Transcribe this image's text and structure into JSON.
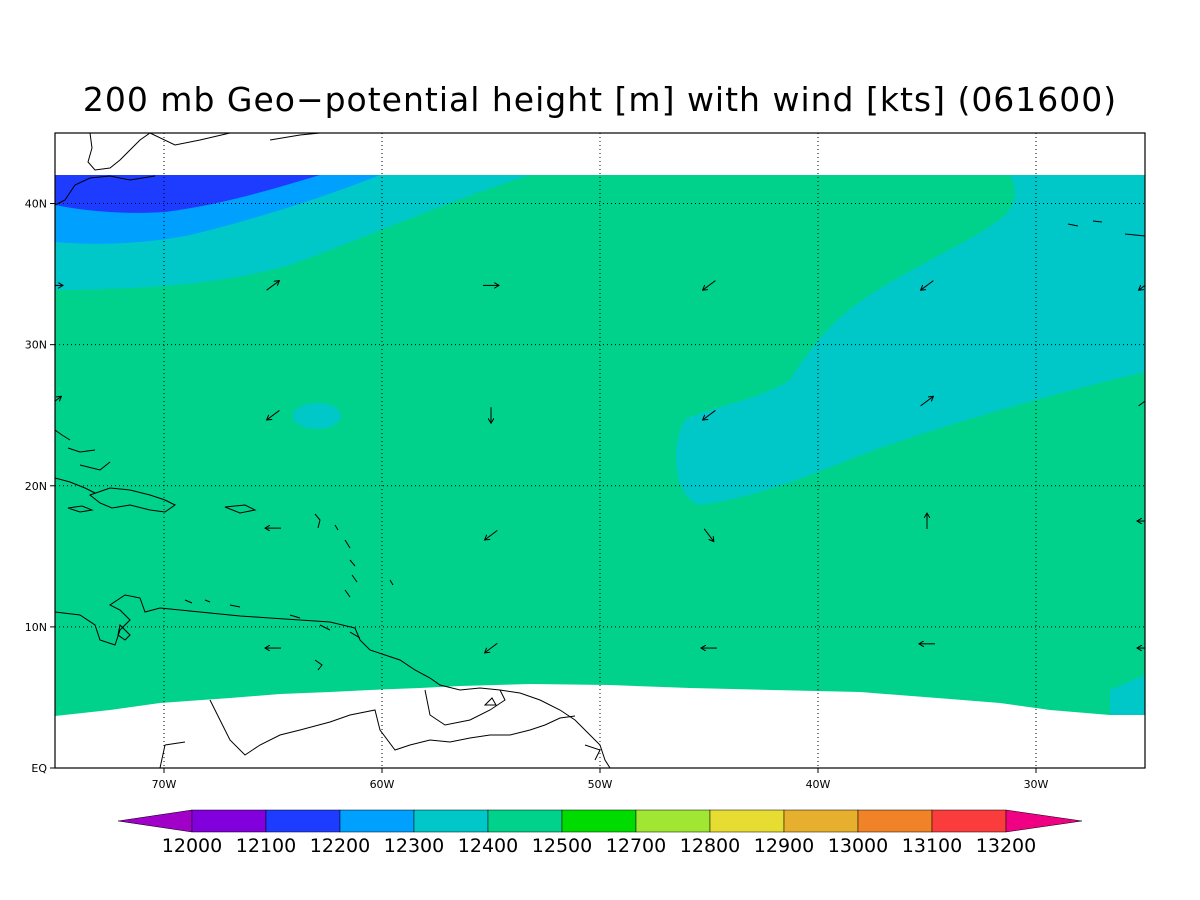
{
  "title": "200 mb Geo−potential height [m] with wind [kts] (061600)",
  "colors": {
    "land_outline": "#000000",
    "grid": "#000000",
    "missing": "#ffffff"
  },
  "map": {
    "lon_range": [
      -75,
      -25
    ],
    "lat_range": [
      0,
      45
    ],
    "data_lat_top": 42,
    "x_ticks": [
      {
        "lon": -70,
        "label": "70W"
      },
      {
        "lon": -60,
        "label": "60W"
      },
      {
        "lon": -50,
        "label": "50W"
      },
      {
        "lon": -40,
        "label": "40W"
      },
      {
        "lon": -30,
        "label": "30W"
      }
    ],
    "y_ticks": [
      {
        "lat": 0,
        "label": "EQ"
      },
      {
        "lat": 10,
        "label": "10N"
      },
      {
        "lat": 20,
        "label": "20N"
      },
      {
        "lat": 30,
        "label": "30N"
      },
      {
        "lat": 40,
        "label": "40N"
      }
    ],
    "grid_lines": "dotted"
  },
  "colorbar": {
    "levels": [
      "12000",
      "12100",
      "12200",
      "12300",
      "12400",
      "12500",
      "12700",
      "12800",
      "12900",
      "13000",
      "13100",
      "13200"
    ],
    "colors": [
      "#a000c8",
      "#8200dc",
      "#1e3cff",
      "#00a0ff",
      "#00c8c8",
      "#00d28c",
      "#00dc00",
      "#a0e632",
      "#e6dc32",
      "#e6af2d",
      "#f08228",
      "#fa3c3c",
      "#f00082"
    ]
  },
  "wind_vectors": [
    {
      "lon": -75,
      "lat": 34.2,
      "dir": "E"
    },
    {
      "lon": -65,
      "lat": 34.2,
      "dir": "NE"
    },
    {
      "lon": -55,
      "lat": 34.2,
      "dir": "E"
    },
    {
      "lon": -45,
      "lat": 34.2,
      "dir": "SW"
    },
    {
      "lon": -35,
      "lat": 34.2,
      "dir": "SW"
    },
    {
      "lon": -25,
      "lat": 34.2,
      "dir": "SW"
    },
    {
      "lon": -75,
      "lat": 26,
      "dir": "NE"
    },
    {
      "lon": -65,
      "lat": 25,
      "dir": "SW"
    },
    {
      "lon": -55,
      "lat": 25,
      "dir": "S"
    },
    {
      "lon": -45,
      "lat": 25,
      "dir": "SW"
    },
    {
      "lon": -35,
      "lat": 26,
      "dir": "NE"
    },
    {
      "lon": -25,
      "lat": 26,
      "dir": "NE"
    },
    {
      "lon": -65,
      "lat": 17,
      "dir": "W"
    },
    {
      "lon": -55,
      "lat": 16.5,
      "dir": "SW"
    },
    {
      "lon": -45,
      "lat": 16.5,
      "dir": "SE"
    },
    {
      "lon": -35,
      "lat": 17.5,
      "dir": "N"
    },
    {
      "lon": -25,
      "lat": 17.5,
      "dir": "W"
    },
    {
      "lon": -65,
      "lat": 8.5,
      "dir": "W"
    },
    {
      "lon": -55,
      "lat": 8.5,
      "dir": "SW"
    },
    {
      "lon": -45,
      "lat": 8.5,
      "dir": "W"
    },
    {
      "lon": -35,
      "lat": 8.8,
      "dir": "W"
    },
    {
      "lon": -25,
      "lat": 8.5,
      "dir": "W"
    }
  ]
}
